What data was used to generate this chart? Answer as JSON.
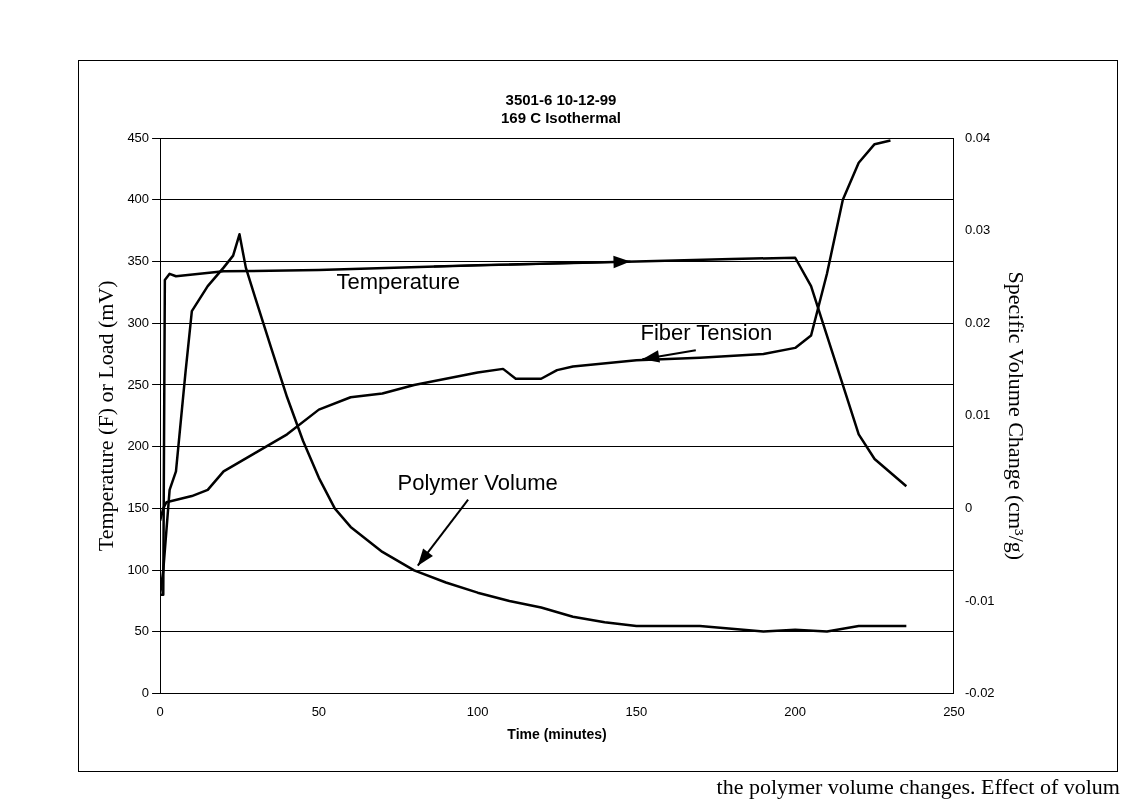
{
  "chart_data": {
    "type": "line",
    "title": "3501-6 10-12-99\n169 C Isothermal",
    "xlabel": "Time (minutes)",
    "ylabel": "Temperature (F) or Load (mV)",
    "y2label": "Specific Volume Change (cm³/g)",
    "xlim": [
      0,
      250
    ],
    "xticks": [
      0,
      50,
      100,
      150,
      200,
      250
    ],
    "ylim": [
      0,
      450
    ],
    "yticks": [
      0,
      50,
      100,
      150,
      200,
      250,
      300,
      350,
      400,
      450
    ],
    "y2lim": [
      -0.02,
      0.04
    ],
    "y2ticks": [
      -0.02,
      -0.01,
      0,
      0.01,
      0.02,
      0.03,
      0.04
    ],
    "grid": "y",
    "legend": false,
    "marker": "none",
    "line_style": "solid",
    "series": [
      {
        "name": "Temperature",
        "color": "#000000",
        "x": [
          0,
          1,
          1.5,
          3,
          5,
          20,
          50,
          100,
          150,
          180,
          200,
          205,
          210,
          215,
          220,
          225,
          235
        ],
        "values": [
          80,
          80,
          335,
          340,
          338,
          342,
          343,
          347,
          350,
          352,
          353,
          330,
          290,
          250,
          210,
          190,
          168
        ]
      },
      {
        "name": "Fiber Tension",
        "color": "#000000",
        "x": [
          0,
          1,
          2,
          10,
          15,
          20,
          30,
          40,
          50,
          60,
          70,
          80,
          90,
          100,
          108,
          112,
          120,
          125,
          130,
          150,
          170,
          190,
          200,
          205,
          210,
          215,
          220,
          225,
          230
        ],
        "values": [
          140,
          150,
          155,
          160,
          165,
          180,
          195,
          210,
          230,
          240,
          243,
          250,
          255,
          260,
          263,
          255,
          255,
          262,
          265,
          270,
          272,
          275,
          280,
          290,
          340,
          400,
          430,
          445,
          448
        ]
      },
      {
        "name": "Polymer Volume",
        "color": "#000000",
        "axis": "y2",
        "x": [
          0,
          1,
          3,
          5,
          8,
          10,
          15,
          20,
          23,
          25,
          27,
          30,
          35,
          40,
          45,
          50,
          55,
          60,
          70,
          80,
          90,
          100,
          110,
          120,
          130,
          140,
          150,
          170,
          190,
          200,
          210,
          220,
          235
        ],
        "values": [
          -0.0093,
          -0.0067,
          0.002,
          0.004,
          0.0147,
          0.0213,
          0.024,
          0.026,
          0.0273,
          0.0296,
          0.026,
          0.0227,
          0.0173,
          0.012,
          0.0073,
          0.0033,
          0,
          -0.002,
          -0.0047,
          -0.0067,
          -0.008,
          -0.0091,
          -0.01,
          -0.0107,
          -0.0117,
          -0.0123,
          -0.0127,
          -0.0127,
          -0.0133,
          -0.0131,
          -0.0133,
          -0.0127,
          -0.0127
        ]
      }
    ],
    "annotations": [
      "the polymer volume changes.  Effect of volum"
    ]
  }
}
